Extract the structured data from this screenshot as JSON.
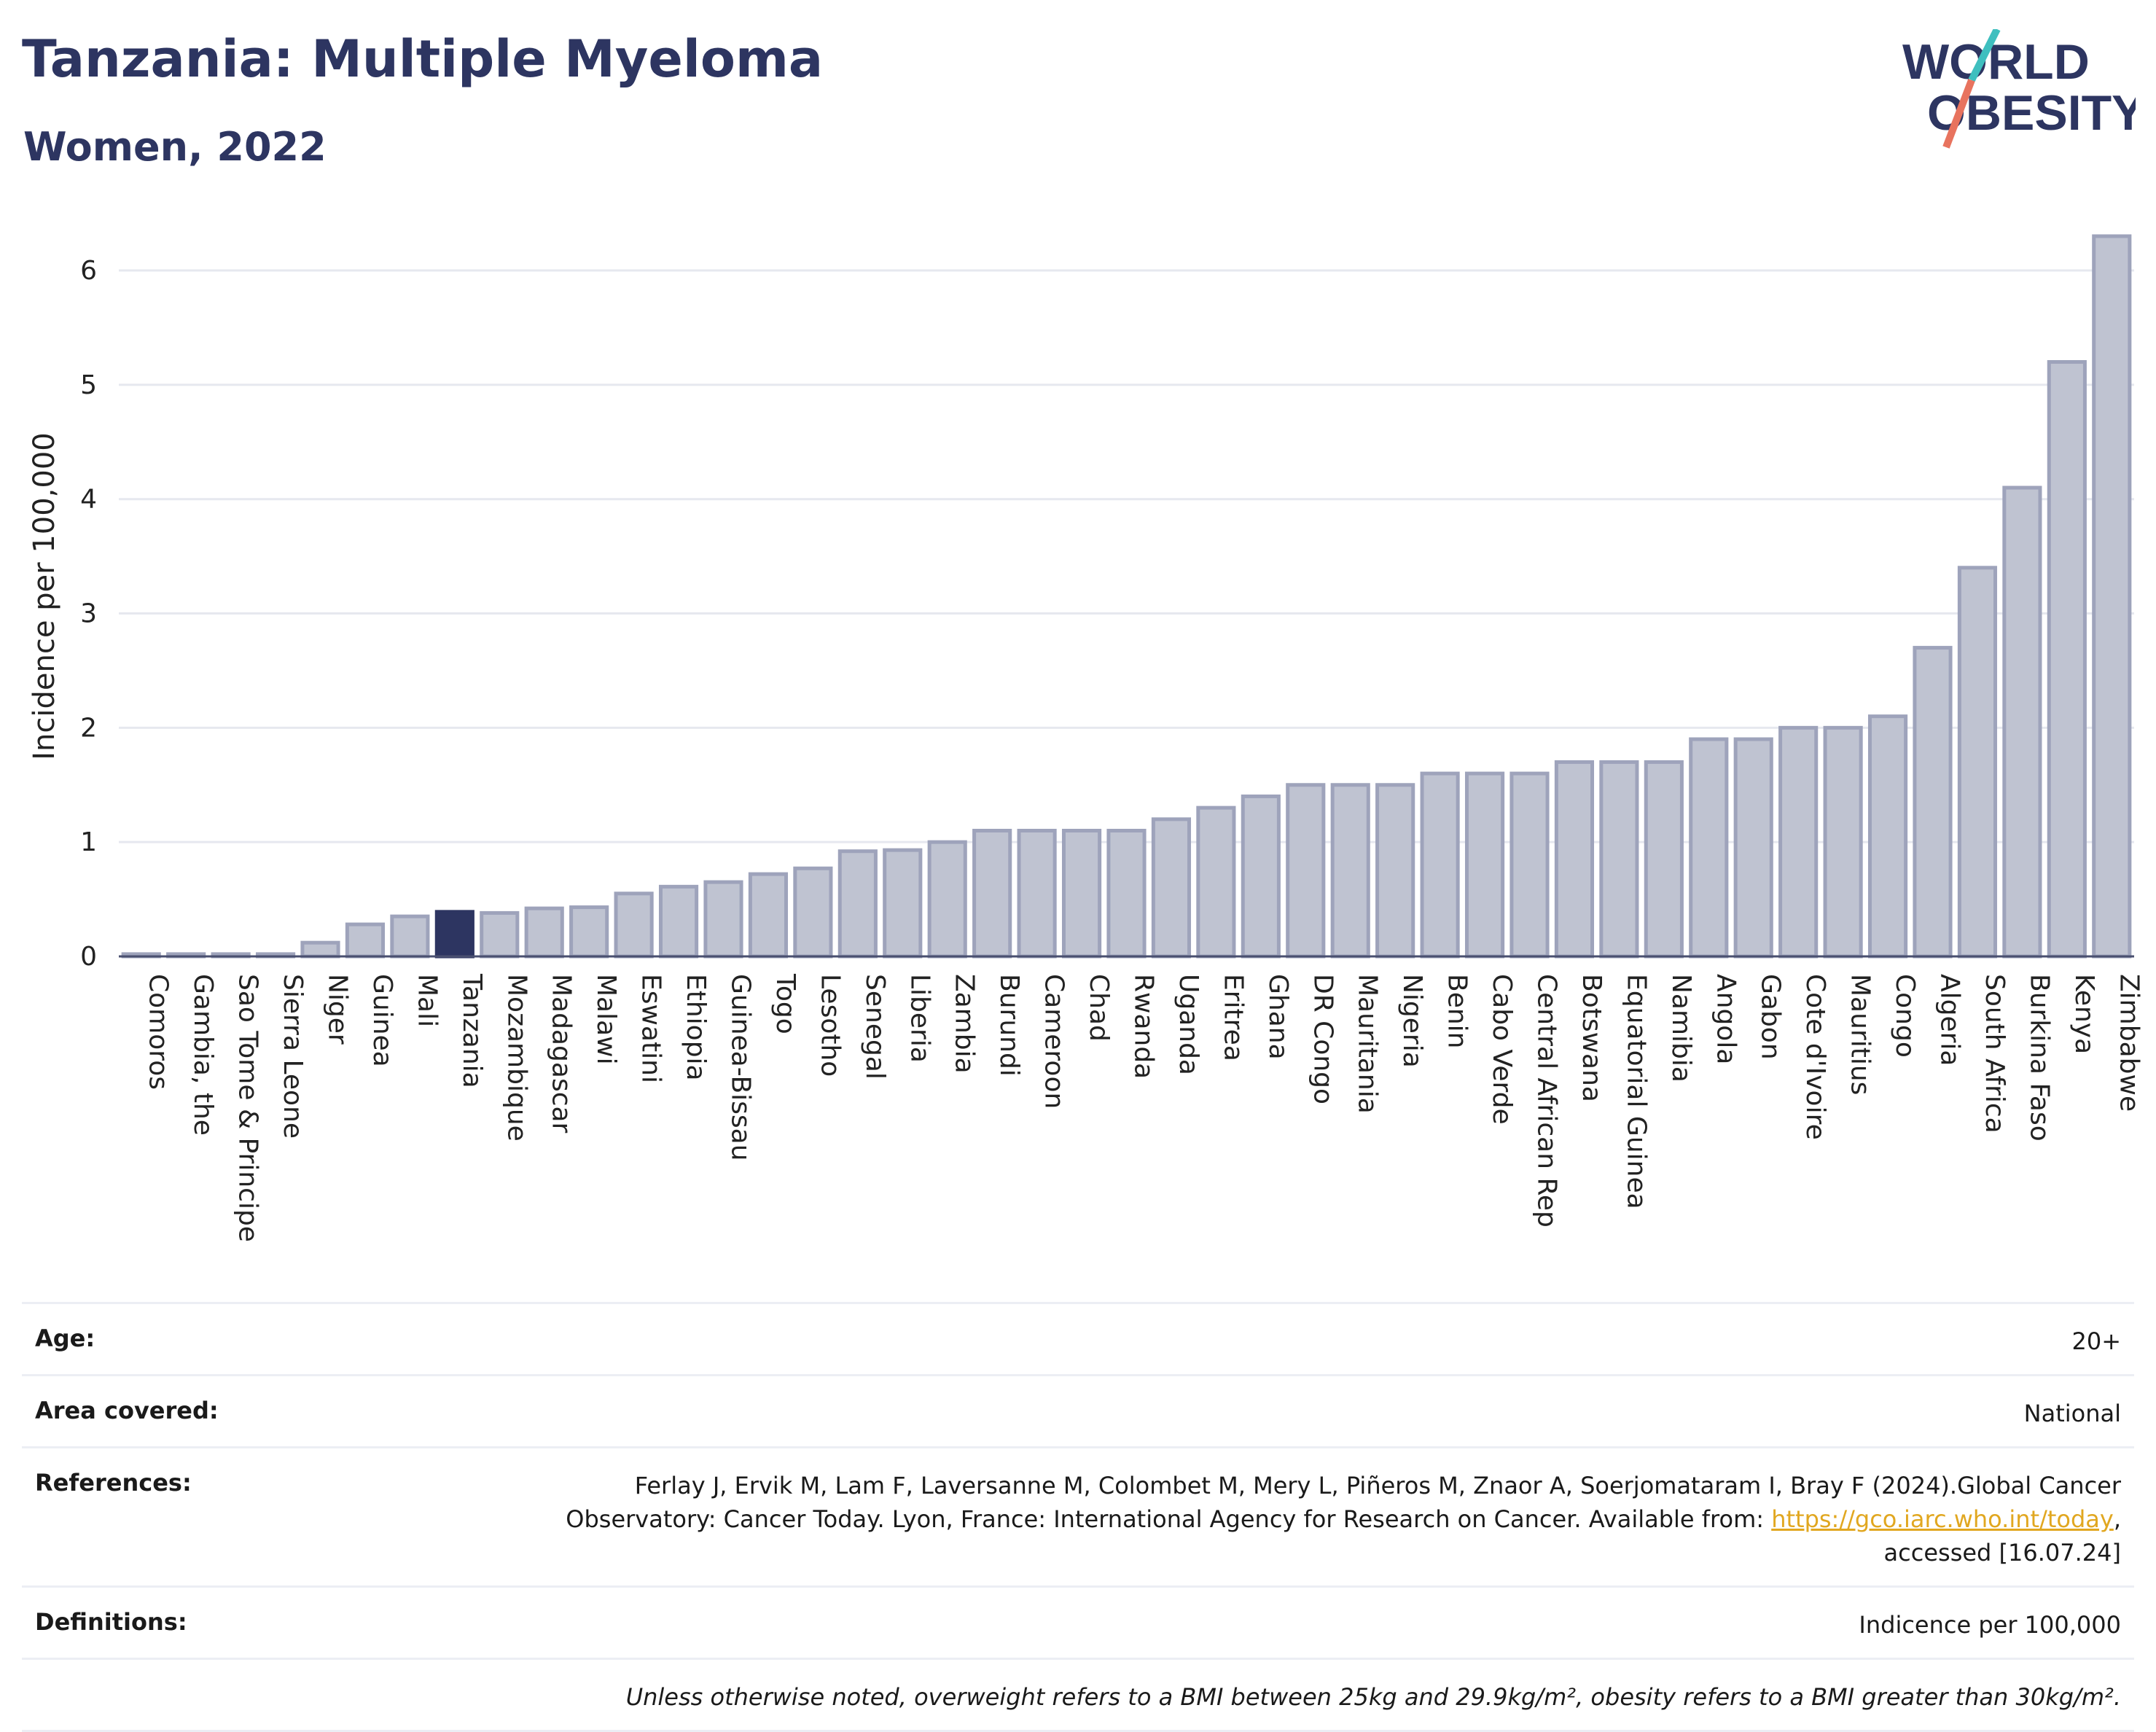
{
  "header": {
    "title": "Tanzania: Multiple Myeloma",
    "subtitle": "Women, 2022",
    "logo_line1": "WORLD",
    "logo_line2": "OBESITY"
  },
  "colors": {
    "bar": "#bfc3d1",
    "bar_stroke": "#9ea3bb",
    "highlight": "#2d3561",
    "title": "#2d3561",
    "grid": "#e6e8ef",
    "link": "#e1a720",
    "logo_teal": "#3fbfbf",
    "logo_coral": "#e8735e"
  },
  "chart_data": {
    "type": "bar",
    "ylabel": "Incidence per 100,000",
    "ylim": [
      0,
      6.3
    ],
    "yticks": [
      0,
      1,
      2,
      3,
      4,
      5,
      6
    ],
    "grid": true,
    "highlight": "Tanzania",
    "categories": [
      "Comoros",
      "Gambia, the",
      "Sao Tome & Principe",
      "Sierra Leone",
      "Niger",
      "Guinea",
      "Mali",
      "Tanzania",
      "Mozambique",
      "Madagascar",
      "Malawi",
      "Eswatini",
      "Ethiopia",
      "Guinea-Bissau",
      "Togo",
      "Lesotho",
      "Senegal",
      "Liberia",
      "Zambia",
      "Burundi",
      "Cameroon",
      "Chad",
      "Rwanda",
      "Uganda",
      "Eritrea",
      "Ghana",
      "DR Congo",
      "Mauritania",
      "Nigeria",
      "Benin",
      "Cabo Verde",
      "Central African Rep",
      "Botswana",
      "Equatorial Guinea",
      "Namibia",
      "Angola",
      "Gabon",
      "Cote d'Ivoire",
      "Mauritius",
      "Congo",
      "Algeria",
      "South Africa",
      "Burkina Faso",
      "Kenya",
      "Zimbabwe"
    ],
    "values": [
      0.02,
      0.02,
      0.02,
      0.02,
      0.12,
      0.28,
      0.35,
      0.39,
      0.38,
      0.42,
      0.43,
      0.55,
      0.61,
      0.65,
      0.72,
      0.77,
      0.92,
      0.93,
      1.0,
      1.1,
      1.1,
      1.1,
      1.1,
      1.2,
      1.3,
      1.4,
      1.5,
      1.5,
      1.5,
      1.6,
      1.6,
      1.6,
      1.7,
      1.7,
      1.7,
      1.9,
      1.9,
      2.0,
      2.0,
      2.1,
      2.7,
      3.4,
      4.1,
      5.2,
      6.3
    ]
  },
  "meta": {
    "age_label": "Age:",
    "age_value": "20+",
    "area_label": "Area covered:",
    "area_value": "National",
    "references_label": "References:",
    "references_line1": "Ferlay J, Ervik M, Lam F, Laversanne M, Colombet M, Mery L, Piñeros M, Znaor A, Soerjomataram I, Bray F (2024).Global Cancer",
    "references_line2_pre": "Observatory: Cancer Today. Lyon, France: International Agency for Research on Cancer. Available from: ",
    "references_link": "https://gco.iarc.who.int/today",
    "references_line2_post": ",",
    "references_line3": "accessed [16.07.24]",
    "definitions_label": "Definitions:",
    "definitions_value": "Indicence per 100,000",
    "note": "Unless otherwise noted, overweight refers to a BMI between 25kg and 29.9kg/m², obesity refers to a BMI greater than 30kg/m²."
  }
}
